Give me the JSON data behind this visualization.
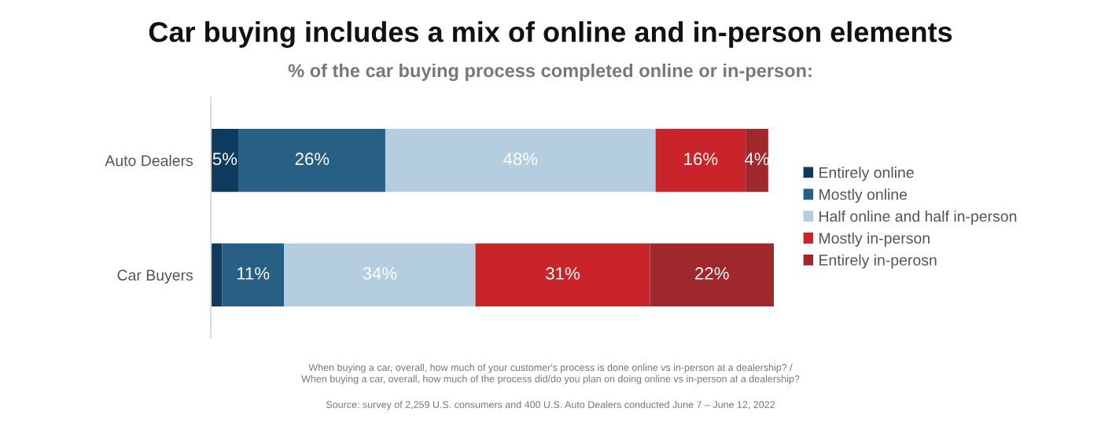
{
  "chart_data": {
    "type": "bar",
    "orientation": "horizontal",
    "stacked": true,
    "title": "Car buying includes a mix of online and in-person elements",
    "subtitle": "% of the car buying process completed online or in-person:",
    "categories": [
      "Auto Dealers",
      "Car Buyers"
    ],
    "series": [
      {
        "name": "Entirely online",
        "color": "#0e3a5e",
        "values": [
          5,
          2
        ],
        "value_labels": [
          "5%",
          null
        ]
      },
      {
        "name": "Mostly online",
        "color": "#285f84",
        "values": [
          26,
          11
        ],
        "value_labels": [
          "26%",
          "11%"
        ]
      },
      {
        "name": "Half online and half in-person",
        "color": "#b4cddf",
        "values": [
          48,
          34
        ],
        "value_labels": [
          "48%",
          "34%"
        ]
      },
      {
        "name": "Mostly in-person",
        "color": "#c8242a",
        "values": [
          16,
          31
        ],
        "value_labels": [
          "16%",
          "31%"
        ]
      },
      {
        "name": "Entirely in-perosn",
        "color": "#a0282c",
        "values": [
          4,
          22
        ],
        "value_labels": [
          "4%",
          "22%"
        ]
      }
    ],
    "legend": "right",
    "grid": false,
    "annotations": [
      "When buying a car, overall, how much of your customer's process is done online vs in-person at a dealership? /\nWhen buying a car, overall, how much of the process did/do you plan on doing online vs in-person at a dealership?",
      "Source: survey of 2,259 U.S. consumers and 400 U.S. Auto Dealers conducted June 7 – June 12, 2022"
    ]
  }
}
